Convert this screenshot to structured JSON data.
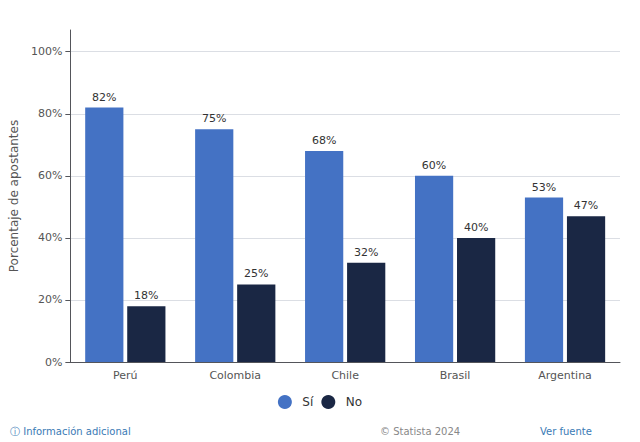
{
  "chart_data": {
    "type": "bar",
    "categories": [
      "Perú",
      "Colombia",
      "Chile",
      "Brasil",
      "Argentina"
    ],
    "series": [
      {
        "name": "Sí",
        "color": "#4472c4",
        "values": [
          82,
          75,
          68,
          60,
          53
        ],
        "value_labels": [
          "82%",
          "75%",
          "68%",
          "60%",
          "53%"
        ]
      },
      {
        "name": "No",
        "color": "#1a2744",
        "values": [
          18,
          25,
          32,
          40,
          47
        ],
        "value_labels": [
          "18%",
          "25%",
          "32%",
          "40%",
          "47%"
        ]
      }
    ],
    "ylabel": "Porcentaje de apostantes",
    "ylim": [
      0,
      107
    ],
    "yticks": [
      {
        "value": 0,
        "label": "0%"
      },
      {
        "value": 20,
        "label": "20%"
      },
      {
        "value": 40,
        "label": "40%"
      },
      {
        "value": 60,
        "label": "60%"
      },
      {
        "value": 80,
        "label": "80%"
      },
      {
        "value": 100,
        "label": "100%"
      }
    ],
    "grid": true,
    "legend": "bottom",
    "data_labels": true,
    "annotations": [
      "ⓘ Información adicional",
      "© Statista 2024",
      "Ver fuente"
    ]
  }
}
